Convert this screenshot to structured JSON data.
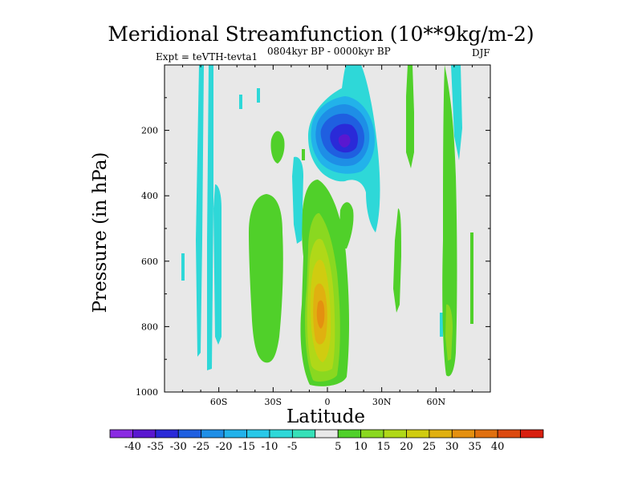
{
  "chart_data": {
    "type": "contour",
    "title": "Meridional Streamfunction (10**9kg/m-2)",
    "subtitle_left": "Expt = teVTH-tevta1",
    "subtitle_center": "0804kyr BP - 0000kyr BP",
    "subtitle_right": "DJF",
    "xlabel": "Latitude",
    "ylabel": "Pressure (in hPa)",
    "xlim": [
      -90,
      90
    ],
    "ylim": [
      1000,
      0
    ],
    "x_ticks": [
      {
        "value": -60,
        "label": "60S"
      },
      {
        "value": -30,
        "label": "30S"
      },
      {
        "value": 0,
        "label": "0"
      },
      {
        "value": 30,
        "label": "30N"
      },
      {
        "value": 60,
        "label": "60N"
      }
    ],
    "y_ticks": [
      {
        "value": 200,
        "label": "200"
      },
      {
        "value": 400,
        "label": "400"
      },
      {
        "value": 600,
        "label": "600"
      },
      {
        "value": 800,
        "label": "800"
      },
      {
        "value": 1000,
        "label": "1000"
      }
    ],
    "colorbar": {
      "colors": [
        "#8a2be2",
        "#5a18d0",
        "#2a2ad8",
        "#1f5fe0",
        "#1e8ee6",
        "#22b2ea",
        "#28c8e8",
        "#2ed8d8",
        "#36e0b8",
        "#e8e8e8",
        "#50d02a",
        "#8ad820",
        "#b0d818",
        "#d0cc10",
        "#e0b010",
        "#e49010",
        "#e07010",
        "#dc4a10",
        "#d82010"
      ],
      "labels": [
        "-40",
        "-35",
        "-30",
        "-25",
        "-20",
        "-15",
        "-10",
        "-5",
        "5",
        "10",
        "15",
        "20",
        "25",
        "30",
        "35",
        "40"
      ],
      "boundaries": [
        -40,
        -35,
        -30,
        -25,
        -20,
        -15,
        -10,
        -5,
        5,
        10,
        15,
        20,
        25,
        30,
        35,
        40
      ]
    },
    "features": [
      {
        "name": "Negative cell (tropical upper troposphere)",
        "center_lat": 8,
        "center_pressure": 250,
        "min_value": -30
      },
      {
        "name": "Positive cell (equatorial lower troposphere)",
        "center_lat": -4,
        "center_pressure": 780,
        "max_value": 30
      }
    ]
  }
}
